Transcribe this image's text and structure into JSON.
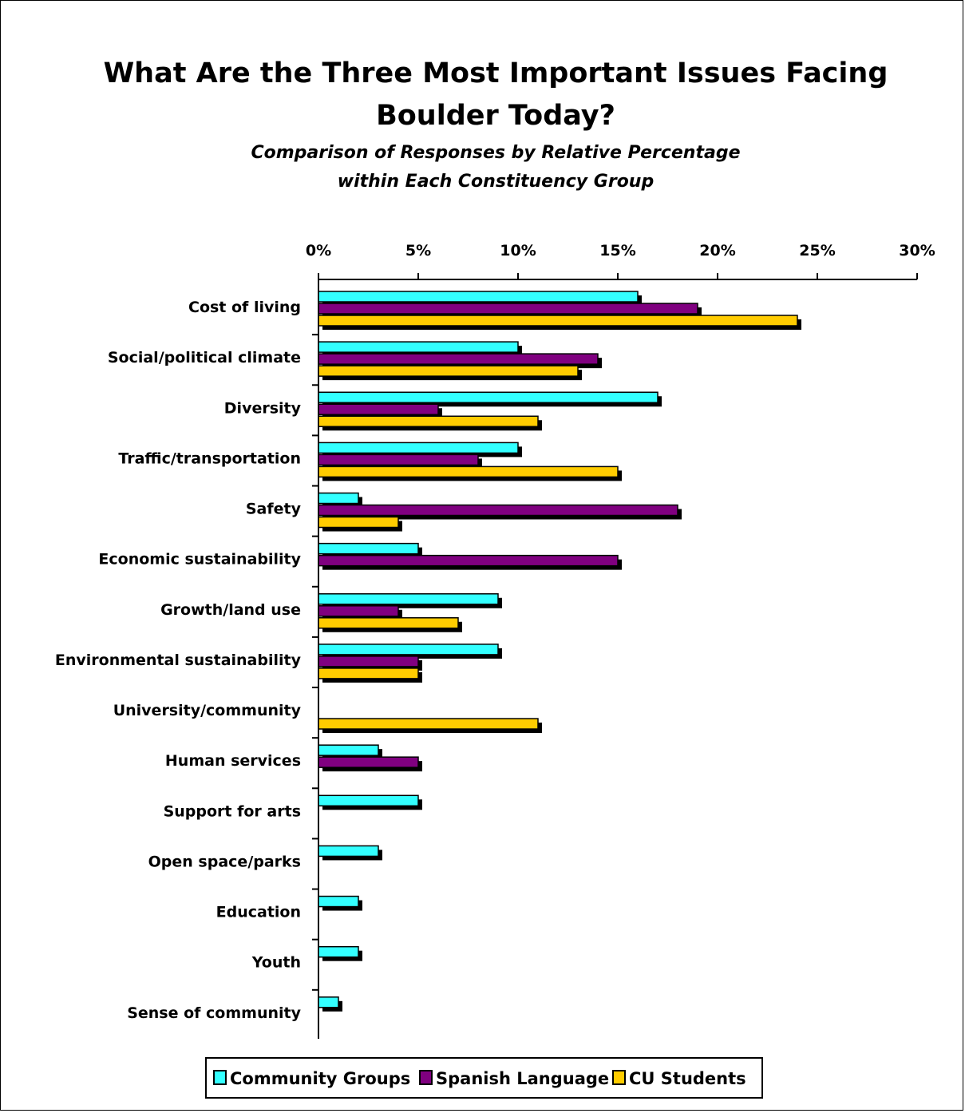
{
  "chart_data": {
    "type": "bar",
    "orientation": "horizontal",
    "title": "What Are the Three Most Important Issues Facing Boulder Today?",
    "title_lines": [
      "What Are the Three Most Important Issues Facing",
      "Boulder Today?"
    ],
    "subtitle": "Comparison of Responses by Relative Percentage within Each Constituency Group",
    "subtitle_lines": [
      "Comparison of Responses by Relative Percentage",
      "within Each Constituency Group"
    ],
    "xlabel": "",
    "ylabel": "",
    "xlim": [
      0,
      30
    ],
    "x_ticks": [
      0,
      5,
      10,
      15,
      20,
      25,
      30
    ],
    "x_tick_labels": [
      "0%",
      "5%",
      "10%",
      "15%",
      "20%",
      "25%",
      "30%"
    ],
    "x_axis_position": "top",
    "grid": false,
    "legend_position": "bottom",
    "categories": [
      "Cost of living",
      "Social/political climate",
      "Diversity",
      "Traffic/transportation",
      "Safety",
      "Economic sustainability",
      "Growth/land use",
      "Environmental sustainability",
      "University/community",
      "Human services",
      "Support for arts",
      "Open space/parks",
      "Education",
      "Youth",
      "Sense of community"
    ],
    "series": [
      {
        "name": "Community Groups",
        "color": "#33ffff",
        "values": [
          16,
          10,
          17,
          10,
          2,
          5,
          9,
          9,
          0,
          3,
          5,
          3,
          2,
          2,
          1
        ]
      },
      {
        "name": "Spanish Language",
        "color": "#800080",
        "values": [
          19,
          14,
          6,
          8,
          18,
          15,
          4,
          5,
          0,
          5,
          0,
          0,
          0,
          0,
          0
        ]
      },
      {
        "name": "CU Students",
        "color": "#ffcc00",
        "values": [
          24,
          13,
          11,
          15,
          4,
          0,
          7,
          5,
          11,
          0,
          0,
          0,
          0,
          0,
          0
        ]
      }
    ]
  }
}
